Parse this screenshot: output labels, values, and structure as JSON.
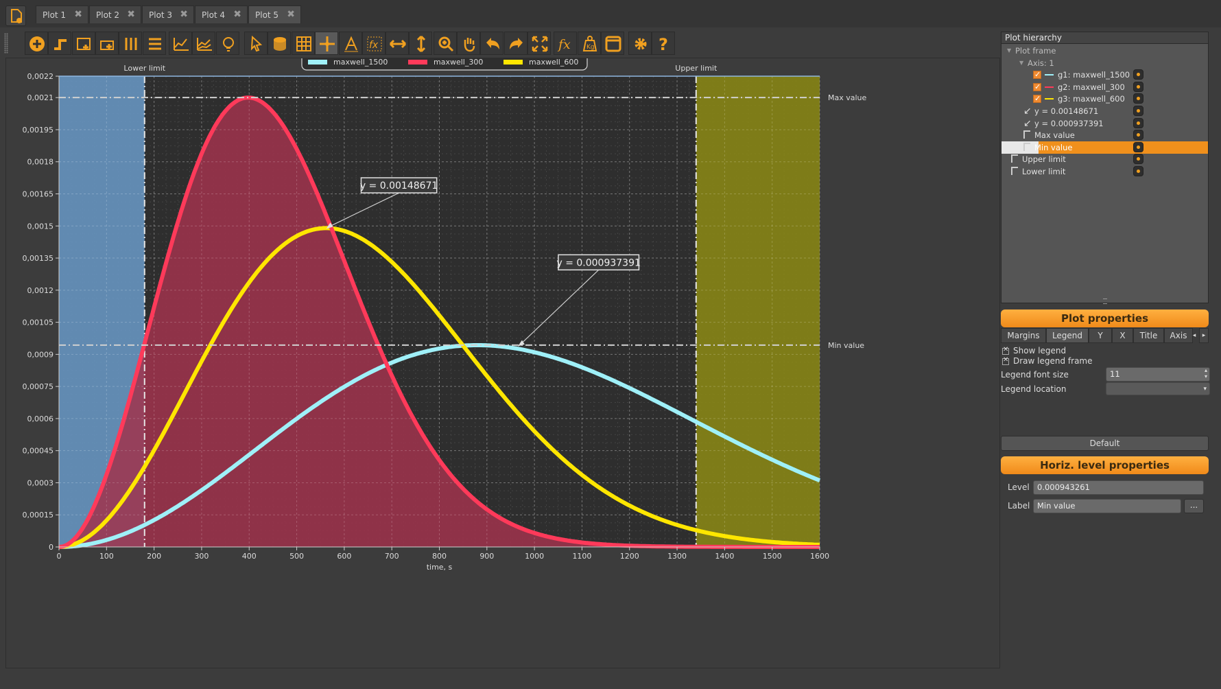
{
  "tabs": [
    {
      "label": "Plot 1"
    },
    {
      "label": "Plot 2"
    },
    {
      "label": "Plot 3"
    },
    {
      "label": "Plot 4"
    },
    {
      "label": "Plot 5"
    }
  ],
  "active_tab": "Plot 5",
  "close_glyph": "✖",
  "toolbar_icons": [
    "add-plot-icon",
    "add-step-icon",
    "add-area-icon",
    "insert-icon",
    "bars-icon",
    "list-settings-icon",
    "line-chart-icon",
    "area-chart-icon",
    "lightbulb-icon",
    "pointer-icon",
    "database-icon",
    "grid-icon",
    "crosshair-icon",
    "text-icon",
    "function-icon",
    "horizontal-arrows-icon",
    "vertical-arrows-icon",
    "zoom-icon",
    "pan-hand-icon",
    "undo-icon",
    "redo-icon",
    "fit-icon",
    "fx-icon",
    "weight-icon",
    "window-icon",
    "gear-icon",
    "help-icon"
  ],
  "chart_data": {
    "type": "line",
    "xlabel": "time, s",
    "xlim": [
      0,
      1600
    ],
    "ylim": [
      0,
      0.0022
    ],
    "xticks": [
      0,
      100,
      200,
      300,
      400,
      500,
      600,
      700,
      800,
      900,
      1000,
      1100,
      1200,
      1300,
      1400,
      1500,
      1600
    ],
    "yticks": [
      "0",
      "0,00015",
      "0,0003",
      "0,00045",
      "0,0006",
      "0,00075",
      "0,0009",
      "0,00105",
      "0,0012",
      "0,00135",
      "0,0015",
      "0,00165",
      "0,0018",
      "0,00195",
      "0,0021",
      "0,0022"
    ],
    "ytick_values": [
      0,
      0.00015,
      0.0003,
      0.00045,
      0.0006,
      0.00075,
      0.0009,
      0.00105,
      0.0012,
      0.00135,
      0.0015,
      0.00165,
      0.0018,
      0.00195,
      0.0021,
      0.0022
    ],
    "grid": true,
    "legend_location": "top-center",
    "series": [
      {
        "name": "maxwell_1500",
        "color": "#9ff0f8",
        "peak_x": 880,
        "peak_y": 0.000943
      },
      {
        "name": "maxwell_300",
        "color": "#ff3a5a",
        "peak_x": 398,
        "peak_y": 0.0021,
        "filled": true,
        "fill_color": "#a0324c"
      },
      {
        "name": "maxwell_600",
        "color": "#ffe600",
        "peak_x": 562,
        "peak_y": 0.00149
      }
    ],
    "regions": [
      {
        "name": "Lower limit",
        "from": 0,
        "to": 180,
        "color": "#6a9ac8"
      },
      {
        "name": "Upper limit",
        "from": 1340,
        "to": 1600,
        "color": "#8c8a14"
      }
    ],
    "hlines": [
      {
        "label": "Max value",
        "y": 0.0021
      },
      {
        "label": "Min value",
        "y": 0.000943261
      }
    ],
    "annotations": [
      {
        "text": "y = 0.00148671",
        "x": 562,
        "y": 0.00148671,
        "box_x": 715,
        "box_y": 0.00169
      },
      {
        "text": "y = 0.000937391",
        "x": 965,
        "y": 0.000937391,
        "box_x": 1135,
        "box_y": 0.00133
      }
    ]
  },
  "hierarchy": {
    "title": "Plot hierarchy",
    "items": [
      {
        "label": "Plot frame",
        "indent": 0,
        "kind": "expander"
      },
      {
        "label": "Axis: 1",
        "indent": 1,
        "kind": "expander"
      },
      {
        "label": "g1:  maxwell_1500",
        "indent": 3,
        "kind": "graph",
        "color": "#9ff0f8"
      },
      {
        "label": "g2:  maxwell_300",
        "indent": 3,
        "kind": "graph",
        "color": "#ff3a5a"
      },
      {
        "label": "g3:  maxwell_600",
        "indent": 3,
        "kind": "graph",
        "color": "#ffe600"
      },
      {
        "label": "y = 0.00148671",
        "indent": 2,
        "kind": "arrow"
      },
      {
        "label": "y = 0.000937391",
        "indent": 2,
        "kind": "arrow"
      },
      {
        "label": "Max value",
        "indent": 2,
        "kind": "level"
      },
      {
        "label": "Min value",
        "indent": 2,
        "kind": "level",
        "selected": true
      },
      {
        "label": "Upper limit",
        "indent": 1,
        "kind": "level"
      },
      {
        "label": "Lower limit",
        "indent": 1,
        "kind": "level"
      }
    ]
  },
  "plot_properties": {
    "header": "Plot properties",
    "tabs": [
      "Margins",
      "Legend",
      "Y",
      "X",
      "Title",
      "Axis"
    ],
    "active": "Legend",
    "show_legend": "Show legend",
    "draw_legend_frame": "Draw legend frame",
    "legend_font_size_label": "Legend font size",
    "legend_font_size": "11",
    "legend_location_label": "Legend location",
    "legend_location": "",
    "default_button": "Default"
  },
  "level_properties": {
    "header": "Horiz. level properties",
    "level_label": "Level",
    "level_value": "0.000943261",
    "label_label": "Label",
    "label_value": "Min value",
    "more_button": "..."
  }
}
